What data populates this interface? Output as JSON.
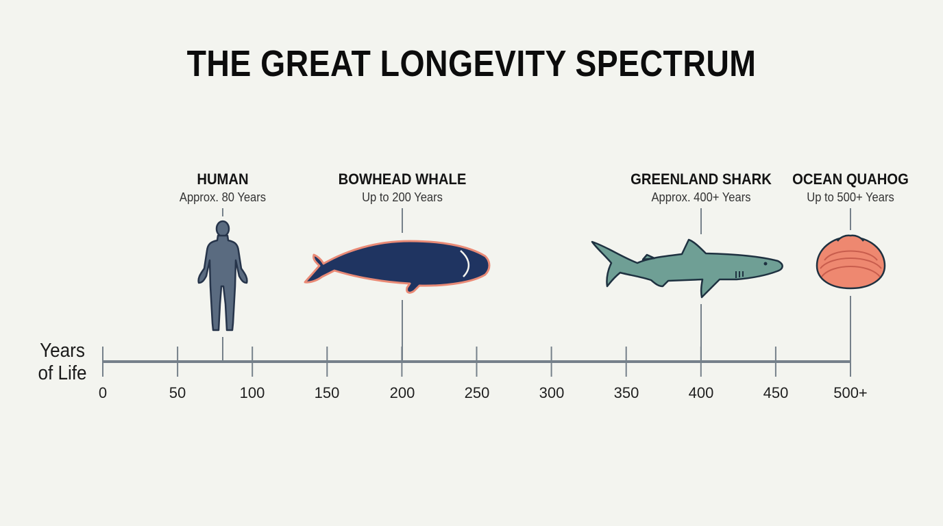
{
  "title": "THE GREAT LONGEVITY SPECTRUM",
  "axis": {
    "title_line1": "Years",
    "title_line2": "of Life",
    "ticks": [
      "0",
      "50",
      "100",
      "150",
      "200",
      "250",
      "300",
      "350",
      "400",
      "450",
      "500+"
    ],
    "line_color": "#75808a"
  },
  "species": [
    {
      "name": "HUMAN",
      "lifespan": "Approx. 80 Years",
      "years": 80,
      "icon": "human-silhouette-icon",
      "fill": "#5a6b80"
    },
    {
      "name": "BOWHEAD WHALE",
      "lifespan": "Up to 200 Years",
      "years": 200,
      "icon": "bowhead-whale-icon",
      "fill": "#1f3461",
      "outline": "#e98a76"
    },
    {
      "name": "GREENLAND SHARK",
      "lifespan": "Approx. 400+ Years",
      "years": 400,
      "icon": "greenland-shark-icon",
      "fill": "#6f9f95"
    },
    {
      "name": "OCEAN QUAHOG",
      "lifespan": "Up to 500+ Years",
      "years": 500,
      "icon": "ocean-quahog-clam-icon",
      "fill": "#ee8870"
    }
  ]
}
